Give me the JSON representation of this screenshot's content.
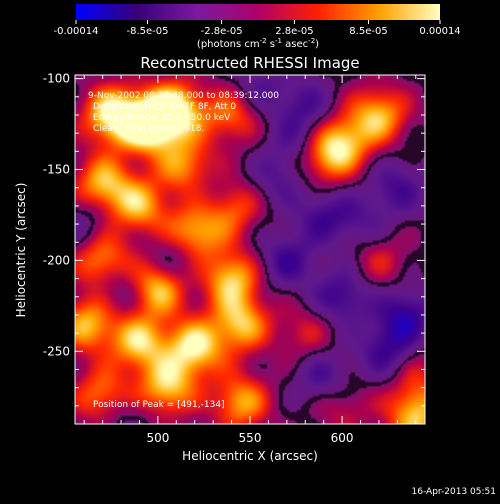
{
  "chart_data": {
    "type": "heatmap",
    "title": "Reconstructed RHESSI Image",
    "xlabel": "Heliocentric X (arcsec)",
    "ylabel": "Heliocentric Y (arcsec)",
    "xlim": [
      455,
      645
    ],
    "ylim": [
      -290,
      -98
    ],
    "x_ticks": [
      500,
      550,
      600
    ],
    "y_ticks": [
      -100,
      -150,
      -200,
      -250
    ],
    "colorbar": {
      "range": [
        -0.00014,
        0.00014
      ],
      "ticks": [
        "-0.00014",
        "-8.5e-05",
        "-2.8e-05",
        "2.8e-05",
        "8.5e-05",
        "0.00014"
      ],
      "ticks_values": [
        -0.00014,
        -8.5e-05,
        -2.8e-05,
        2.8e-05,
        8.5e-05,
        0.00014
      ],
      "unit_base": "(photons cm",
      "unit_exp1": "-2",
      "unit_mid": " s",
      "unit_exp2": "-1",
      "unit_mid2": " asec",
      "unit_exp3": "-2",
      "unit_end": ")",
      "colors": [
        "#0000ff",
        "#3a007a",
        "#7a1aa0",
        "#b0006a",
        "#ff2000",
        "#ffa000",
        "#ffffc0"
      ]
    },
    "annotations": [
      "9-Nov-2002 08:37:48.000 to 08:39:12.000",
      "Detectors: 4F 5F 6F 7F 8F, Att 0",
      "Energy Range: 25.0 - 50.0 keV",
      "Clean: Total counts: 918."
    ],
    "peak_label": "Position of Peak = [491,-134]",
    "peak": {
      "x": 491,
      "y": -134
    },
    "timestamp": "16-Apr-2013 05:51",
    "blobs": [
      {
        "x": 475,
        "y": -120,
        "v": 1.0
      },
      {
        "x": 495,
        "y": -125,
        "v": 1.2
      },
      {
        "x": 510,
        "y": -117,
        "v": 0.95
      },
      {
        "x": 540,
        "y": -120,
        "v": 0.6
      },
      {
        "x": 515,
        "y": -148,
        "v": 0.7
      },
      {
        "x": 470,
        "y": -158,
        "v": 0.8
      },
      {
        "x": 490,
        "y": -170,
        "v": 0.75
      },
      {
        "x": 520,
        "y": -185,
        "v": 0.85
      },
      {
        "x": 540,
        "y": -170,
        "v": 0.65
      },
      {
        "x": 470,
        "y": -200,
        "v": 0.75
      },
      {
        "x": 500,
        "y": -215,
        "v": 0.9
      },
      {
        "x": 540,
        "y": -210,
        "v": 0.85
      },
      {
        "x": 462,
        "y": -235,
        "v": 0.8
      },
      {
        "x": 490,
        "y": -245,
        "v": 0.85
      },
      {
        "x": 520,
        "y": -248,
        "v": 0.95
      },
      {
        "x": 545,
        "y": -235,
        "v": 0.8
      },
      {
        "x": 505,
        "y": -270,
        "v": 0.85
      },
      {
        "x": 470,
        "y": -275,
        "v": 0.7
      },
      {
        "x": 545,
        "y": -278,
        "v": 0.75
      },
      {
        "x": 620,
        "y": -120,
        "v": 0.8
      },
      {
        "x": 600,
        "y": -135,
        "v": 0.75
      },
      {
        "x": 590,
        "y": -145,
        "v": 0.55
      },
      {
        "x": 620,
        "y": -200,
        "v": 0.35
      },
      {
        "x": 580,
        "y": -240,
        "v": 0.35
      },
      {
        "x": 640,
        "y": -260,
        "v": 0.3
      },
      {
        "x": 600,
        "y": -280,
        "v": 0.35
      },
      {
        "x": 640,
        "y": -280,
        "v": 0.45
      },
      {
        "x": 640,
        "y": -290,
        "v": 0.5
      },
      {
        "x": 555,
        "y": -105,
        "v": -0.35
      },
      {
        "x": 580,
        "y": -115,
        "v": -0.4
      },
      {
        "x": 590,
        "y": -175,
        "v": -0.45
      },
      {
        "x": 565,
        "y": -155,
        "v": -0.35
      },
      {
        "x": 630,
        "y": -160,
        "v": -0.45
      },
      {
        "x": 570,
        "y": -200,
        "v": -0.5
      },
      {
        "x": 600,
        "y": -220,
        "v": -0.55
      },
      {
        "x": 635,
        "y": -230,
        "v": -0.6
      },
      {
        "x": 625,
        "y": -250,
        "v": -0.55
      },
      {
        "x": 590,
        "y": -265,
        "v": -0.45
      },
      {
        "x": 575,
        "y": -135,
        "v": -0.3
      },
      {
        "x": 510,
        "y": -200,
        "v": -0.35
      },
      {
        "x": 480,
        "y": -215,
        "v": -0.3
      },
      {
        "x": 530,
        "y": -165,
        "v": -0.25
      },
      {
        "x": 460,
        "y": -180,
        "v": -0.3
      },
      {
        "x": 480,
        "y": -285,
        "v": -0.25
      },
      {
        "x": 610,
        "y": -180,
        "v": -0.3
      }
    ]
  }
}
